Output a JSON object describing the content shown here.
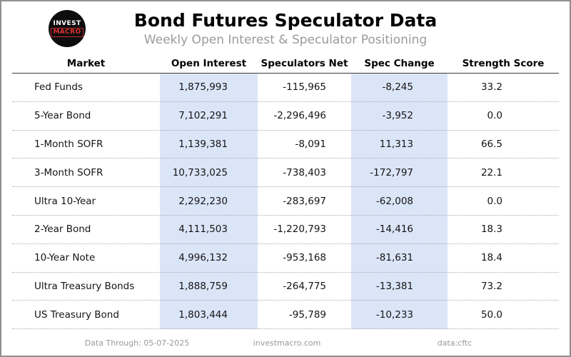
{
  "header": {
    "title": "Bond Futures Speculator Data",
    "subtitle": "Weekly Open Interest & Speculator Positioning",
    "logo": {
      "line1": "INVEST",
      "line2": "MACRO"
    }
  },
  "table": {
    "columns": [
      "Market",
      "Open Interest",
      "Speculators Net",
      "Spec Change",
      "Strength Score"
    ],
    "rows": [
      {
        "market": "Fed Funds",
        "open_interest": "1,875,993",
        "speculators_net": "-115,965",
        "spec_change": "-8,245",
        "strength_score": "33.2"
      },
      {
        "market": "5-Year Bond",
        "open_interest": "7,102,291",
        "speculators_net": "-2,296,496",
        "spec_change": "-3,952",
        "strength_score": "0.0"
      },
      {
        "market": "1-Month SOFR",
        "open_interest": "1,139,381",
        "speculators_net": "-8,091",
        "spec_change": "11,313",
        "strength_score": "66.5"
      },
      {
        "market": "3-Month SOFR",
        "open_interest": "10,733,025",
        "speculators_net": "-738,403",
        "spec_change": "-172,797",
        "strength_score": "22.1"
      },
      {
        "market": "Ultra 10-Year",
        "open_interest": "2,292,230",
        "speculators_net": "-283,697",
        "spec_change": "-62,008",
        "strength_score": "0.0"
      },
      {
        "market": "2-Year Bond",
        "open_interest": "4,111,503",
        "speculators_net": "-1,220,793",
        "spec_change": "-14,416",
        "strength_score": "18.3"
      },
      {
        "market": "10-Year Note",
        "open_interest": "4,996,132",
        "speculators_net": "-953,168",
        "spec_change": "-81,631",
        "strength_score": "18.4"
      },
      {
        "market": "Ultra Treasury Bonds",
        "open_interest": "1,888,759",
        "speculators_net": "-264,775",
        "spec_change": "-13,381",
        "strength_score": "73.2"
      },
      {
        "market": "US Treasury Bond",
        "open_interest": "1,803,444",
        "speculators_net": "-95,789",
        "spec_change": "-10,233",
        "strength_score": "50.0"
      }
    ]
  },
  "footer": {
    "data_through": "Data Through: 05-07-2025",
    "site": "investmacro.com",
    "source": "data:cftc"
  },
  "colors": {
    "highlight_band": "#dbe5f8",
    "subtitle_gray": "#9a9a9a",
    "logo_red": "#e03131",
    "border_gray": "#8f8f8f",
    "header_rule": "#3a3a3a"
  },
  "chart_data": {
    "type": "table",
    "title": "Bond Futures Speculator Data",
    "subtitle": "Weekly Open Interest & Speculator Positioning",
    "columns": [
      "Market",
      "Open Interest",
      "Speculators Net",
      "Spec Change",
      "Strength Score"
    ],
    "rows": [
      [
        "Fed Funds",
        1875993,
        -115965,
        -8245,
        33.2
      ],
      [
        "5-Year Bond",
        7102291,
        -2296496,
        -3952,
        0.0
      ],
      [
        "1-Month SOFR",
        1139381,
        -8091,
        11313,
        66.5
      ],
      [
        "3-Month SOFR",
        10733025,
        -738403,
        -172797,
        22.1
      ],
      [
        "Ultra 10-Year",
        2292230,
        -283697,
        -62008,
        0.0
      ],
      [
        "2-Year Bond",
        4111503,
        -1220793,
        -14416,
        18.3
      ],
      [
        "10-Year Note",
        4996132,
        -953168,
        -81631,
        18.4
      ],
      [
        "Ultra Treasury Bonds",
        1888759,
        -264775,
        -13381,
        73.2
      ],
      [
        "US Treasury Bond",
        1803444,
        -95789,
        -10233,
        50.0
      ]
    ],
    "highlighted_columns": [
      "Open Interest",
      "Spec Change"
    ],
    "footnotes": [
      "Data Through: 05-07-2025",
      "investmacro.com",
      "data:cftc"
    ]
  }
}
